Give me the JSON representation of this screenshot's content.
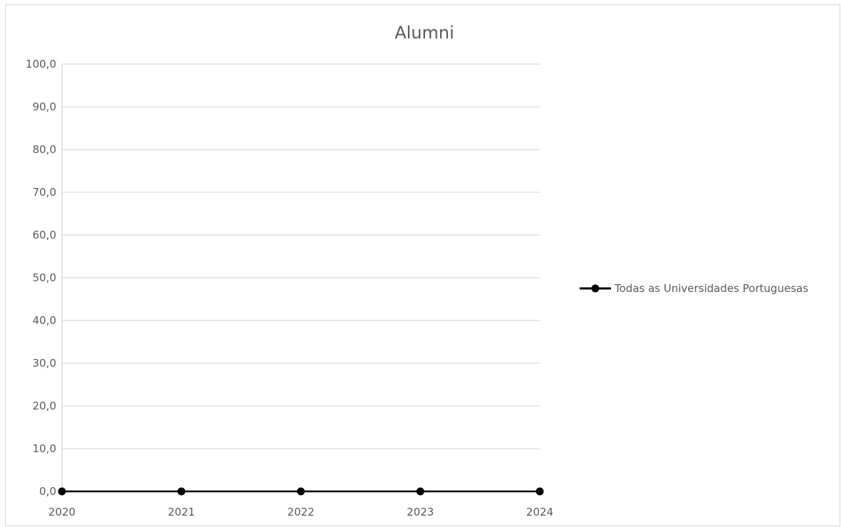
{
  "chart_data": {
    "type": "line",
    "title": "Alumni",
    "xlabel": "",
    "ylabel": "",
    "x": [
      "2020",
      "2021",
      "2022",
      "2023",
      "2024"
    ],
    "ylim": [
      0,
      100
    ],
    "y_tick_step": 10,
    "y_tick_labels": [
      "0,0",
      "10,0",
      "20,0",
      "30,0",
      "40,0",
      "50,0",
      "60,0",
      "70,0",
      "80,0",
      "90,0",
      "100,0"
    ],
    "grid": true,
    "legend_position": "right",
    "series": [
      {
        "name": "Todas as Universidades Portuguesas",
        "values": [
          0,
          0,
          0,
          0,
          0
        ],
        "color": "#000000",
        "marker": "circle"
      }
    ]
  }
}
